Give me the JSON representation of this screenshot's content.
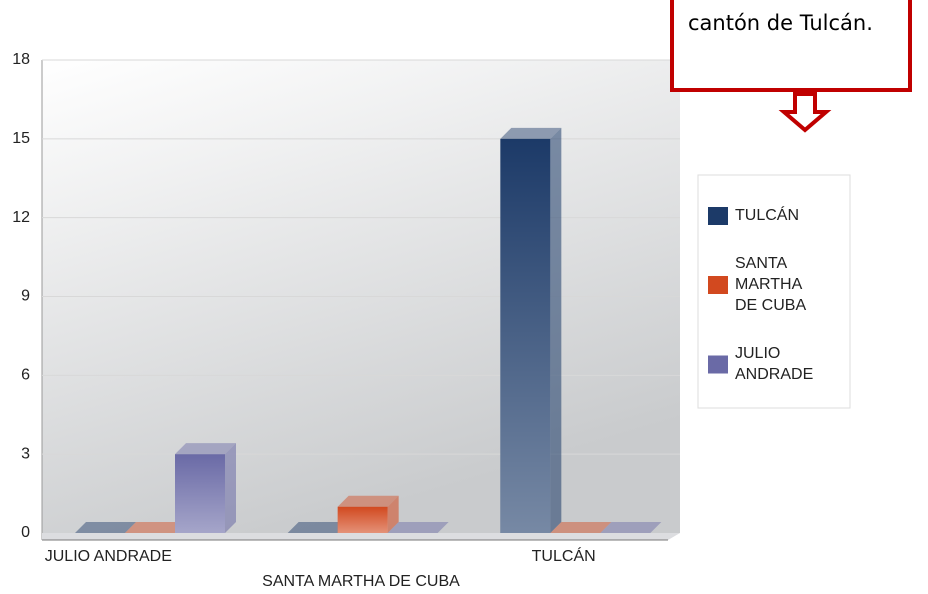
{
  "chart_data": {
    "type": "bar3d",
    "annotation": "cantón de Tulcán.",
    "categories": [
      "JULIO ANDRADE",
      "SANTA MARTHA DE CUBA",
      "TULCÁN"
    ],
    "series": [
      {
        "name": "TULCÁN",
        "color": "#1c3a68",
        "values": [
          0,
          0,
          15
        ]
      },
      {
        "name": "SANTA MARTHA DE CUBA",
        "color": "#d2491f",
        "values": [
          0,
          1,
          0
        ]
      },
      {
        "name": "JULIO ANDRADE",
        "color": "#6a6aa6",
        "values": [
          3,
          0,
          0
        ]
      }
    ],
    "ylim": [
      0,
      18
    ],
    "yticks": [
      0,
      3,
      6,
      9,
      12,
      15,
      18
    ],
    "grid": true,
    "legend": "right"
  }
}
